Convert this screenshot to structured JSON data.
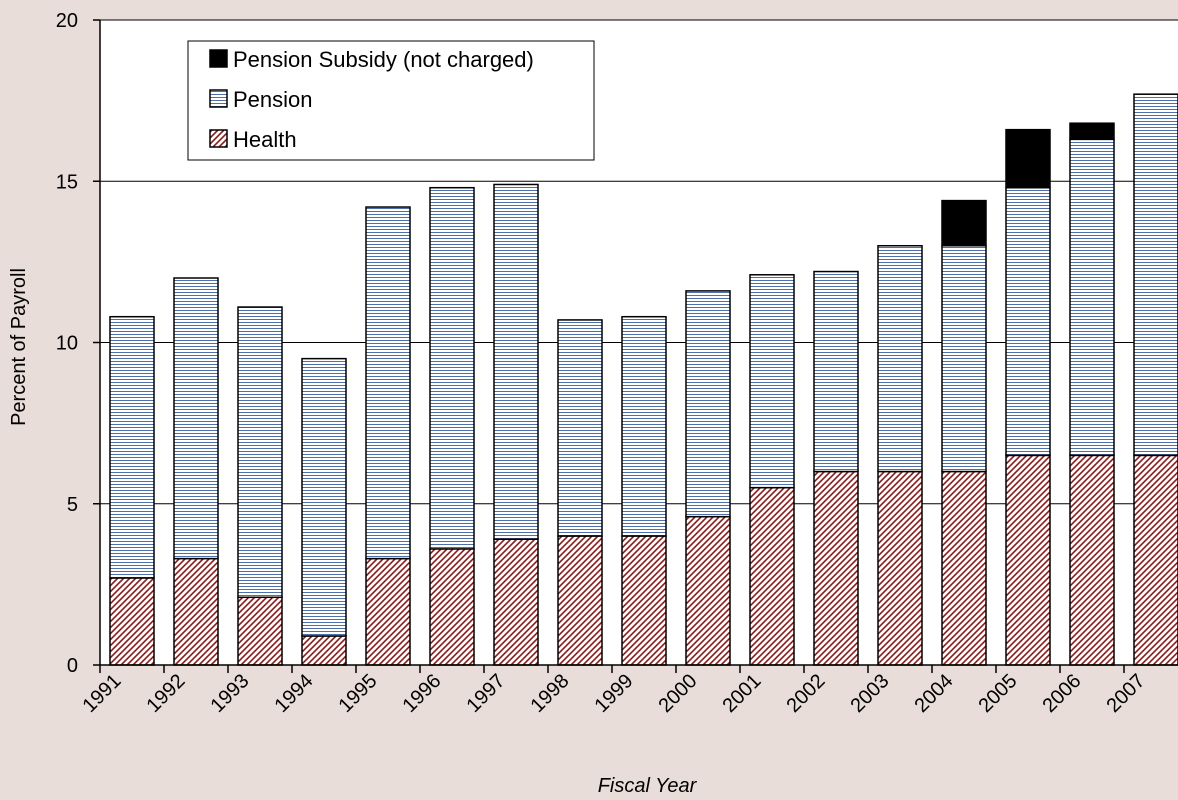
{
  "chart_data": {
    "type": "bar",
    "stacked": true,
    "title": "",
    "xlabel": "Fiscal Year",
    "ylabel": "Percent of Payroll",
    "ylim": [
      0,
      20
    ],
    "yticks": [
      "0",
      "5",
      "10",
      "15",
      "20"
    ],
    "grid": true,
    "legend_position": "top-left",
    "categories": [
      "1991",
      "1992",
      "1993",
      "1994",
      "1995",
      "1996",
      "1997",
      "1998",
      "1999",
      "2000",
      "2001",
      "2002",
      "2003",
      "2004",
      "2005",
      "2006",
      "2007"
    ],
    "series": [
      {
        "name": "Health",
        "pattern": "diagonal-hatch",
        "color": "#8b1a1a",
        "values": [
          2.7,
          3.3,
          2.1,
          0.9,
          3.3,
          3.6,
          3.9,
          4.0,
          4.0,
          4.6,
          5.5,
          6.0,
          6.0,
          6.0,
          6.5,
          6.5,
          6.5
        ]
      },
      {
        "name": "Pension",
        "pattern": "horizontal-lines",
        "color": "#4f6fa8",
        "values": [
          8.1,
          8.7,
          9.0,
          8.6,
          10.9,
          11.2,
          11.0,
          6.7,
          6.8,
          7.0,
          6.6,
          6.2,
          7.0,
          7.0,
          8.3,
          9.8,
          11.2
        ]
      },
      {
        "name": "Pension Subsidy (not charged)",
        "pattern": "solid",
        "color": "#000000",
        "values": [
          0,
          0,
          0,
          0,
          0,
          0,
          0,
          0,
          0,
          0,
          0,
          0,
          0,
          1.4,
          1.8,
          0.5,
          0
        ]
      }
    ],
    "legend_order": [
      "Pension Subsidy (not charged)",
      "Pension",
      "Health"
    ]
  }
}
